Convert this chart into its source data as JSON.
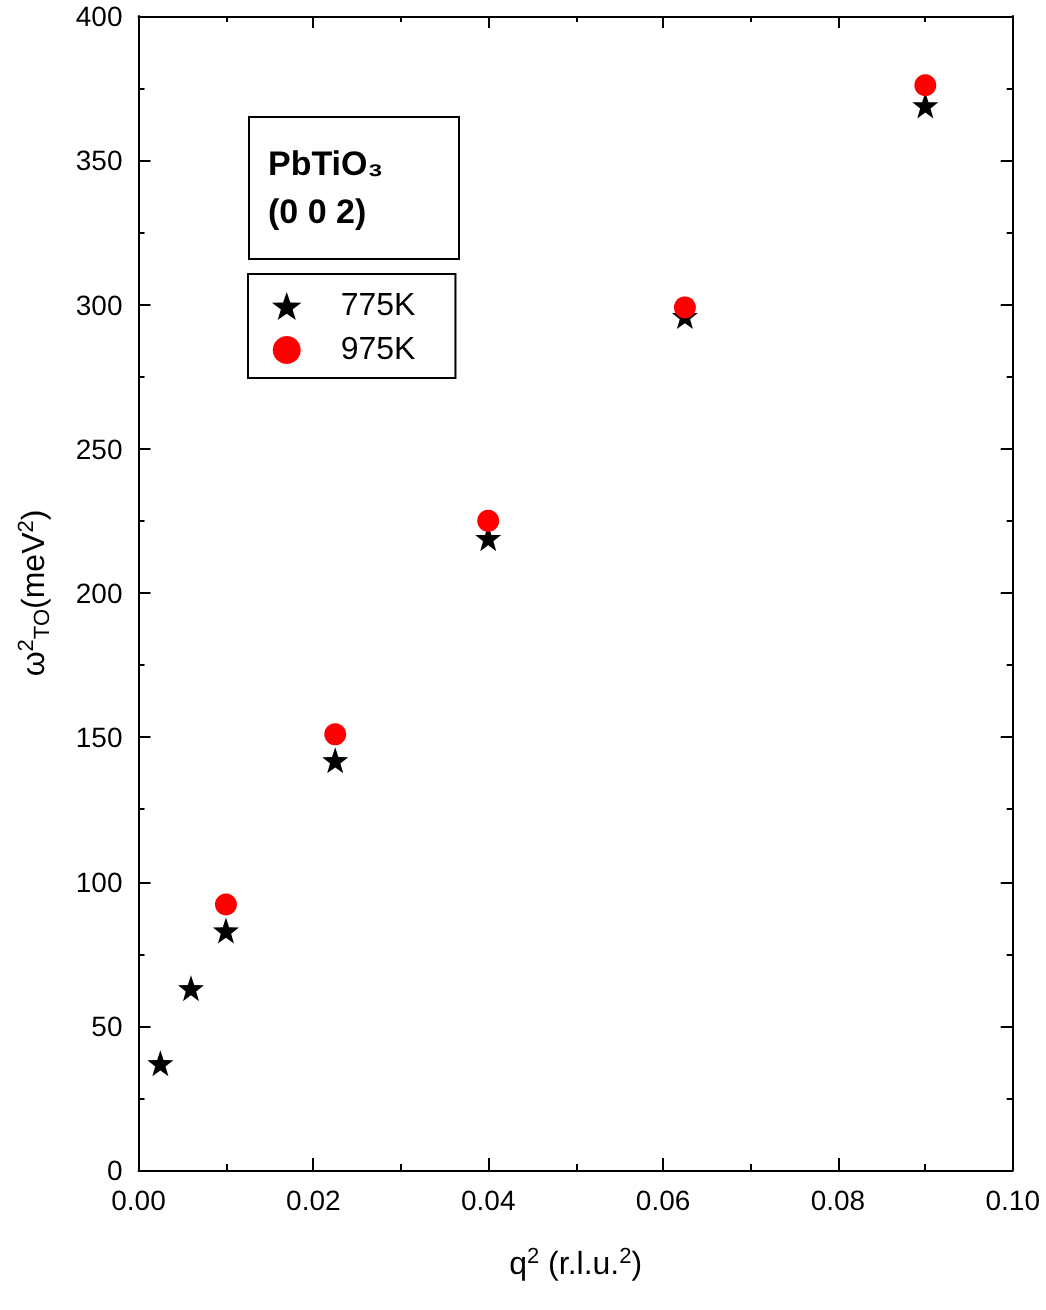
{
  "chart_data": {
    "type": "scatter",
    "title": "PbTiO₃ (0 0 2)",
    "xlabel": "q$^{2}$ (r.l.u.$^{2}$)",
    "ylabel": "ω$^{2}$$_{TO}$(meV$^{2}$)",
    "series": [
      {
        "name": "775K",
        "color": "#000000",
        "marker": "star",
        "x": [
          0.0025,
          0.006,
          0.01,
          0.0225,
          0.04,
          0.0625,
          0.09
        ],
        "values": [
          37,
          63,
          83,
          142,
          219,
          296,
          369
        ]
      },
      {
        "name": "975K",
        "color": "#ff0000",
        "marker": "circle",
        "x": [
          0.01,
          0.0225,
          0.04,
          0.0625,
          0.09
        ],
        "values": [
          92,
          151,
          225,
          299,
          376
        ]
      }
    ],
    "xlim": [
      0,
      0.1
    ],
    "xticks": [
      {
        "value": 0,
        "label": "0.00"
      },
      {
        "value": 0.02,
        "label": "0.02"
      },
      {
        "value": 0.04,
        "label": "0.04"
      },
      {
        "value": 0.06,
        "label": "0.06"
      },
      {
        "value": 0.08,
        "label": "0.08"
      },
      {
        "value": 0.1,
        "label": "0.10"
      }
    ],
    "ylim": [
      0,
      400
    ],
    "yticks": [
      0,
      50,
      100,
      150,
      200,
      250,
      300,
      350,
      400
    ],
    "grid": false,
    "legend": "top left"
  }
}
